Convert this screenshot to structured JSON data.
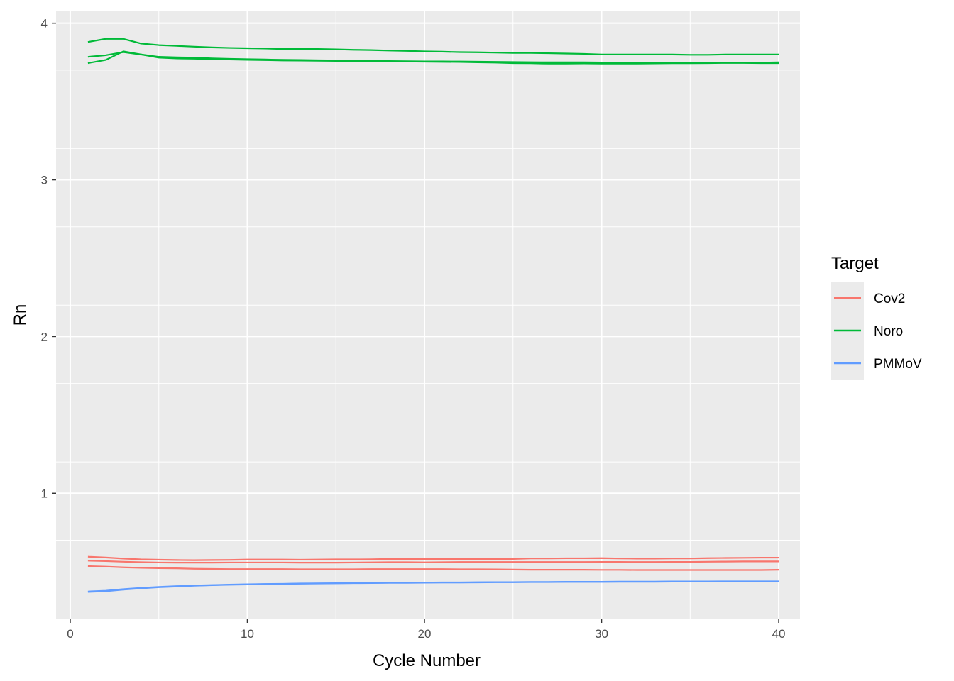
{
  "chart_data": {
    "type": "line",
    "xlabel": "Cycle Number",
    "ylabel": "Rn",
    "xlim": [
      -0.8,
      41.2
    ],
    "ylim": [
      0.2,
      4.08
    ],
    "x_ticks": [
      0,
      10,
      20,
      30,
      40
    ],
    "y_ticks": [
      1,
      2,
      3,
      4
    ],
    "grid": true,
    "legend": {
      "title": "Target",
      "position": "right",
      "entries": [
        {
          "name": "Cov2",
          "color": "#F8766D"
        },
        {
          "name": "Noro",
          "color": "#00BA38"
        },
        {
          "name": "PMMoV",
          "color": "#619CFF"
        }
      ]
    },
    "x": [
      1,
      2,
      3,
      4,
      5,
      6,
      7,
      8,
      9,
      10,
      11,
      12,
      13,
      14,
      15,
      16,
      17,
      18,
      19,
      20,
      21,
      22,
      23,
      24,
      25,
      26,
      27,
      28,
      29,
      30,
      31,
      32,
      33,
      34,
      35,
      36,
      37,
      38,
      39,
      40
    ],
    "series": [
      {
        "name": "Noro",
        "color": "#00BA38",
        "values": [
          3.88,
          3.9,
          3.9,
          3.87,
          3.86,
          3.855,
          3.85,
          3.845,
          3.842,
          3.84,
          3.838,
          3.835,
          3.835,
          3.835,
          3.833,
          3.83,
          3.828,
          3.825,
          3.823,
          3.82,
          3.818,
          3.815,
          3.814,
          3.812,
          3.81,
          3.81,
          3.808,
          3.806,
          3.804,
          3.8,
          3.8,
          3.8,
          3.8,
          3.8,
          3.798,
          3.798,
          3.8,
          3.8,
          3.8,
          3.8
        ]
      },
      {
        "name": "Noro",
        "color": "#00BA38",
        "values": [
          3.785,
          3.795,
          3.815,
          3.8,
          3.785,
          3.782,
          3.78,
          3.775,
          3.772,
          3.77,
          3.768,
          3.766,
          3.765,
          3.763,
          3.762,
          3.76,
          3.759,
          3.758,
          3.757,
          3.756,
          3.756,
          3.755,
          3.754,
          3.753,
          3.752,
          3.751,
          3.75,
          3.75,
          3.75,
          3.749,
          3.749,
          3.748,
          3.748,
          3.748,
          3.748,
          3.748,
          3.748,
          3.748,
          3.748,
          3.75
        ]
      },
      {
        "name": "Noro",
        "color": "#00BA38",
        "values": [
          3.745,
          3.765,
          3.82,
          3.8,
          3.78,
          3.775,
          3.773,
          3.77,
          3.768,
          3.766,
          3.764,
          3.762,
          3.761,
          3.76,
          3.759,
          3.758,
          3.757,
          3.756,
          3.755,
          3.754,
          3.753,
          3.752,
          3.75,
          3.748,
          3.745,
          3.744,
          3.742,
          3.742,
          3.743,
          3.742,
          3.742,
          3.742,
          3.743,
          3.744,
          3.744,
          3.745,
          3.746,
          3.746,
          3.745,
          3.745
        ]
      },
      {
        "name": "Cov2",
        "color": "#F8766D",
        "values": [
          0.595,
          0.59,
          0.583,
          0.578,
          0.576,
          0.574,
          0.573,
          0.574,
          0.575,
          0.577,
          0.577,
          0.577,
          0.576,
          0.577,
          0.578,
          0.578,
          0.579,
          0.581,
          0.581,
          0.58,
          0.58,
          0.58,
          0.58,
          0.581,
          0.581,
          0.584,
          0.584,
          0.585,
          0.585,
          0.586,
          0.584,
          0.583,
          0.583,
          0.584,
          0.584,
          0.586,
          0.587,
          0.588,
          0.589,
          0.589
        ]
      },
      {
        "name": "Cov2",
        "color": "#F8766D",
        "values": [
          0.57,
          0.567,
          0.563,
          0.56,
          0.558,
          0.557,
          0.557,
          0.557,
          0.558,
          0.558,
          0.558,
          0.558,
          0.557,
          0.557,
          0.557,
          0.558,
          0.559,
          0.56,
          0.56,
          0.559,
          0.56,
          0.561,
          0.561,
          0.561,
          0.561,
          0.561,
          0.561,
          0.561,
          0.561,
          0.562,
          0.562,
          0.561,
          0.561,
          0.562,
          0.562,
          0.563,
          0.564,
          0.565,
          0.565,
          0.565
        ]
      },
      {
        "name": "Cov2",
        "color": "#F8766D",
        "values": [
          0.535,
          0.532,
          0.527,
          0.524,
          0.522,
          0.521,
          0.518,
          0.517,
          0.516,
          0.516,
          0.516,
          0.516,
          0.515,
          0.515,
          0.515,
          0.515,
          0.516,
          0.516,
          0.516,
          0.516,
          0.516,
          0.515,
          0.515,
          0.514,
          0.513,
          0.512,
          0.512,
          0.512,
          0.512,
          0.511,
          0.511,
          0.51,
          0.51,
          0.51,
          0.51,
          0.51,
          0.51,
          0.51,
          0.51,
          0.512
        ]
      },
      {
        "name": "PMMoV",
        "color": "#619CFF",
        "values": [
          0.37,
          0.375,
          0.385,
          0.393,
          0.4,
          0.405,
          0.41,
          0.413,
          0.416,
          0.418,
          0.42,
          0.421,
          0.423,
          0.424,
          0.425,
          0.426,
          0.427,
          0.428,
          0.428,
          0.429,
          0.43,
          0.43,
          0.431,
          0.432,
          0.432,
          0.433,
          0.433,
          0.434,
          0.434,
          0.434,
          0.435,
          0.435,
          0.435,
          0.436,
          0.436,
          0.436,
          0.437,
          0.437,
          0.437,
          0.437
        ]
      },
      {
        "name": "PMMoV",
        "color": "#619CFF",
        "values": [
          0.373,
          0.378,
          0.388,
          0.396,
          0.402,
          0.407,
          0.411,
          0.414,
          0.417,
          0.419,
          0.421,
          0.422,
          0.424,
          0.425,
          0.426,
          0.427,
          0.428,
          0.429,
          0.429,
          0.43,
          0.431,
          0.431,
          0.432,
          0.433,
          0.433,
          0.434,
          0.434,
          0.435,
          0.435,
          0.435,
          0.436,
          0.436,
          0.436,
          0.437,
          0.437,
          0.437,
          0.438,
          0.438,
          0.438,
          0.438
        ]
      }
    ]
  }
}
